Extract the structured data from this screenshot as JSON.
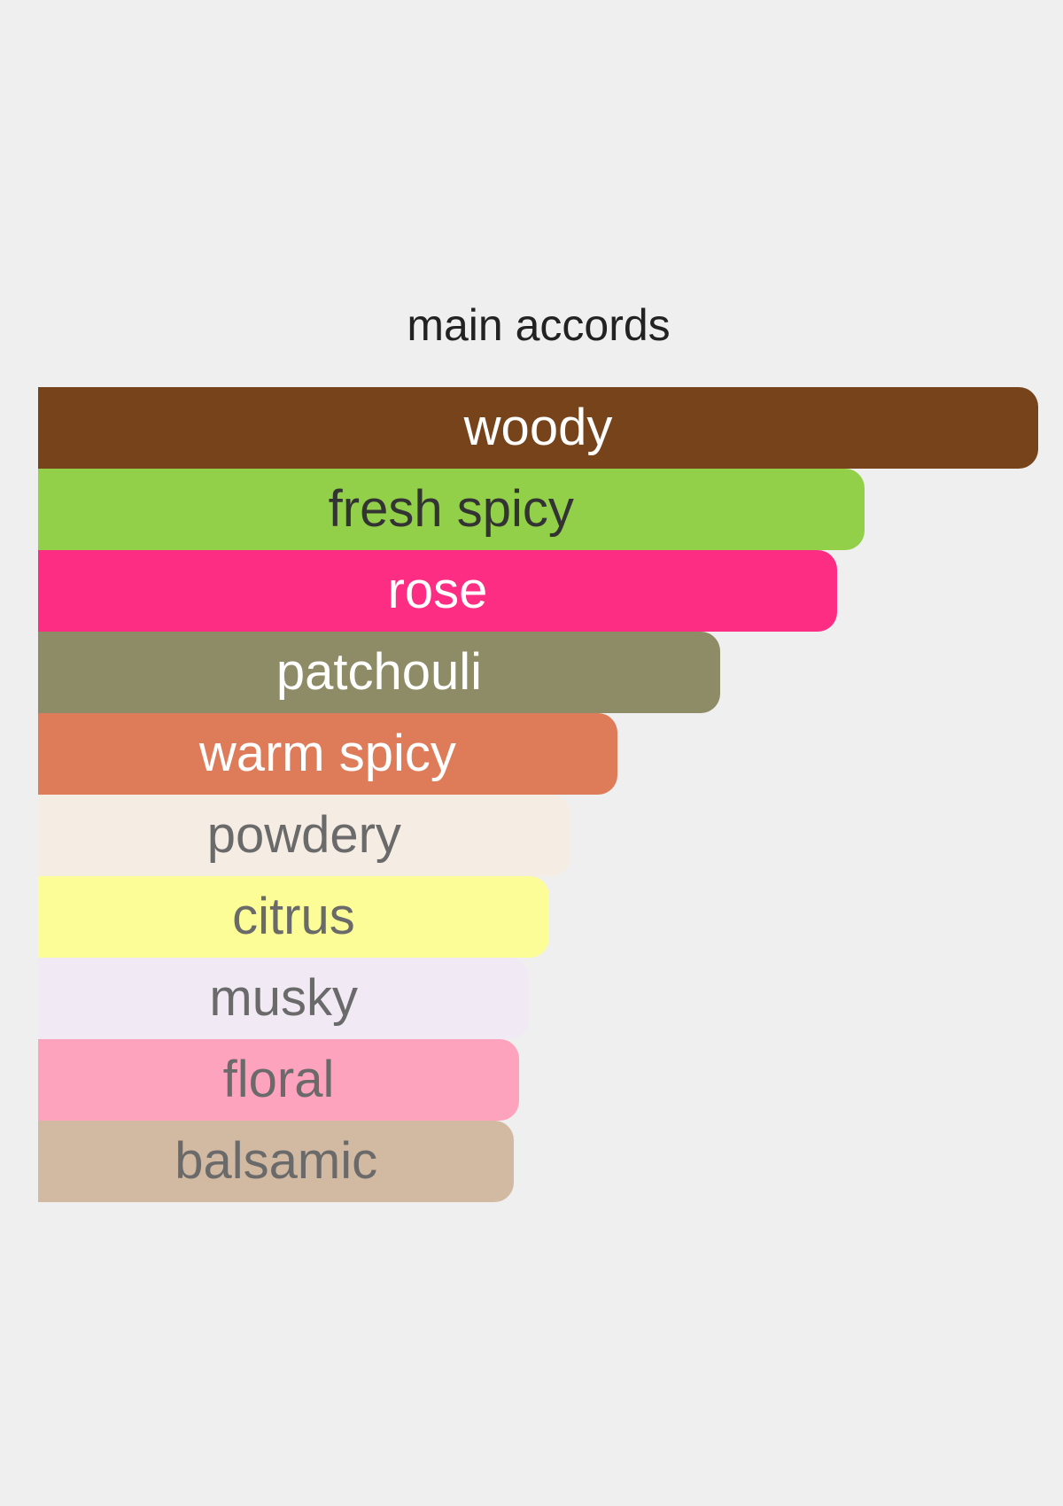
{
  "chart_data": {
    "type": "bar",
    "orientation": "horizontal",
    "title": "main accords",
    "xlabel": "",
    "ylabel": "",
    "grid": false,
    "categories": [
      "woody",
      "fresh spicy",
      "rose",
      "patchouli",
      "warm spicy",
      "powdery",
      "citrus",
      "musky",
      "floral",
      "balsamic"
    ],
    "values": [
      100,
      82.6,
      79.9,
      68.2,
      57.9,
      53.2,
      51.1,
      49.1,
      48.1,
      47.6
    ],
    "xlim": [
      0,
      100
    ],
    "colors": [
      "#77431a",
      "#93d04a",
      "#fe2d84",
      "#8e8c66",
      "#de7c5a",
      "#f5ece3",
      "#fdfd98",
      "#f1e9f4",
      "#fea3be",
      "#d2b9a1"
    ],
    "label_colors": [
      "#ffffff",
      "#333333",
      "#ffffff",
      "#ffffff",
      "#ffffff",
      "#6a6a6a",
      "#6a6a6a",
      "#6a6a6a",
      "#6a6a6a",
      "#6a6a6a"
    ]
  }
}
